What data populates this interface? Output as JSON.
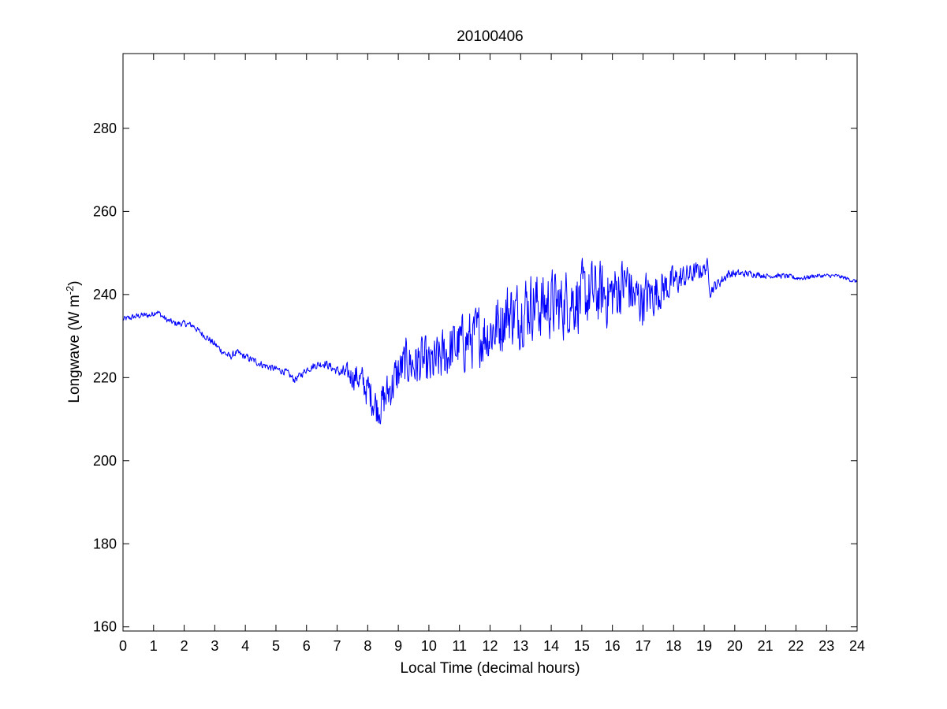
{
  "chart_data": {
    "type": "line",
    "title": "20100406",
    "xlabel": "Local Time (decimal hours)",
    "ylabel_main": "Longwave (W m",
    "ylabel_sup": "-2",
    "ylabel_close": ")",
    "xlim": [
      0,
      24
    ],
    "ylim": [
      159,
      298
    ],
    "xticks": [
      0,
      1,
      2,
      3,
      4,
      5,
      6,
      7,
      8,
      9,
      10,
      11,
      12,
      13,
      14,
      15,
      16,
      17,
      18,
      19,
      20,
      21,
      22,
      23,
      24
    ],
    "xtick_labels": [
      "0",
      "1",
      "2",
      "3",
      "4",
      "5",
      "6",
      "7",
      "8",
      "9",
      "10",
      "11",
      "12",
      "13",
      "14",
      "15",
      "16",
      "17",
      "18",
      "19",
      "20",
      "21",
      "22",
      "23",
      "24"
    ],
    "yticks": [
      160,
      180,
      200,
      220,
      240,
      260,
      280
    ],
    "ytick_labels": [
      "160",
      "180",
      "200",
      "220",
      "240",
      "260",
      "280"
    ],
    "grid": false,
    "series": [
      {
        "color": "#0000ff",
        "noise_profile_hours": [
          0,
          1,
          2,
          3,
          4,
          5,
          6,
          7,
          7.5,
          8,
          8.5,
          9,
          10,
          11,
          12,
          13,
          14,
          15,
          16,
          17,
          18,
          19,
          19.2,
          20,
          21,
          22,
          23,
          24
        ],
        "noise_profile_amplitude": [
          0.6,
          0.6,
          0.6,
          0.7,
          0.7,
          0.7,
          0.7,
          0.9,
          2.5,
          3.5,
          4,
          4.5,
          5,
          5.5,
          6,
          6.5,
          6.5,
          6.5,
          6,
          5,
          3,
          1.5,
          1.2,
          0.8,
          0.5,
          0.5,
          0.4,
          0.4
        ],
        "x": [
          0,
          0.3,
          0.6,
          0.9,
          1.1,
          1.4,
          1.7,
          2.0,
          2.3,
          2.5,
          2.7,
          3.0,
          3.3,
          3.5,
          3.7,
          4.0,
          4.3,
          4.6,
          5.0,
          5.3,
          5.6,
          5.8,
          6.0,
          6.3,
          6.6,
          6.9,
          7.2,
          7.5,
          7.7,
          7.9,
          8.1,
          8.3,
          8.5,
          8.7,
          9.0,
          9.3,
          9.5,
          9.8,
          10.0,
          10.3,
          10.6,
          11.0,
          11.3,
          11.6,
          12.0,
          12.3,
          12.6,
          12.9,
          13.1,
          13.4,
          13.7,
          14.0,
          14.3,
          14.6,
          15.0,
          15.3,
          15.6,
          16.0,
          16.3,
          16.5,
          16.7,
          17.0,
          17.3,
          17.5,
          17.8,
          18.0,
          18.3,
          18.6,
          19.0,
          19.1,
          19.2,
          19.5,
          19.8,
          20.0,
          20.3,
          20.6,
          21.0,
          21.3,
          21.6,
          22.0,
          22.3,
          22.6,
          23.0,
          23.3,
          23.6,
          24.0
        ],
        "y": [
          234,
          234.5,
          235,
          235,
          236,
          234,
          233,
          233,
          232.5,
          231,
          230,
          228,
          226,
          225,
          226,
          225,
          224,
          223,
          222,
          221.5,
          219.5,
          220.5,
          222,
          223,
          223.5,
          222,
          221,
          220.5,
          220,
          218,
          216,
          213,
          214,
          217,
          221,
          224,
          223,
          224,
          222,
          224,
          226,
          228,
          229,
          230,
          231,
          233,
          236,
          235,
          237,
          238,
          237,
          238,
          237,
          239,
          239,
          240,
          240,
          240,
          242,
          243,
          239,
          239,
          240,
          241,
          242,
          243,
          244,
          245,
          246,
          247,
          241,
          243,
          245,
          245,
          245,
          245,
          244.5,
          244.5,
          244.5,
          244,
          244,
          244.5,
          244.5,
          244.5,
          244,
          243
        ]
      }
    ]
  }
}
